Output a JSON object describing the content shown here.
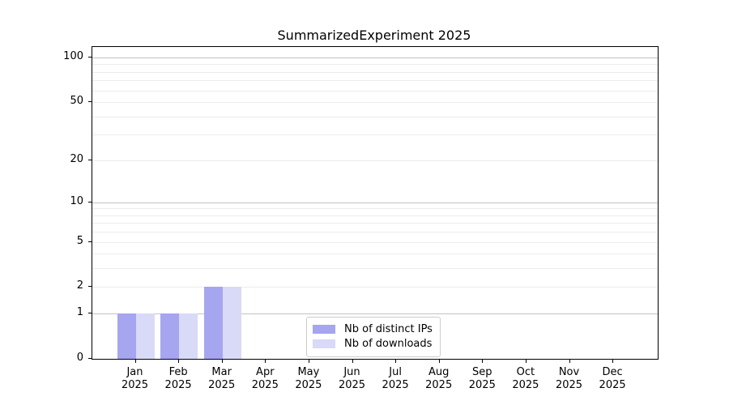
{
  "colors": {
    "background": "#ffffff",
    "axis": "#000000",
    "major_grid": "#c3c3c3",
    "minor_grid": "#ececec",
    "legend_border": "#cccccc",
    "bar_distinct_ips": "#a5a5f0",
    "bar_downloads": "#d9d9f8"
  },
  "chart_data": {
    "type": "bar",
    "title": "SummarizedExperiment 2025",
    "xlabel": "",
    "ylabel": "",
    "scale": "log1p",
    "grid": "horizontal",
    "legend_position": "inside-bottom-center",
    "ylim": [
      0,
      117.6
    ],
    "categories": [
      {
        "month": "Jan",
        "year": "2025"
      },
      {
        "month": "Feb",
        "year": "2025"
      },
      {
        "month": "Mar",
        "year": "2025"
      },
      {
        "month": "Apr",
        "year": "2025"
      },
      {
        "month": "May",
        "year": "2025"
      },
      {
        "month": "Jun",
        "year": "2025"
      },
      {
        "month": "Jul",
        "year": "2025"
      },
      {
        "month": "Aug",
        "year": "2025"
      },
      {
        "month": "Sep",
        "year": "2025"
      },
      {
        "month": "Oct",
        "year": "2025"
      },
      {
        "month": "Nov",
        "year": "2025"
      },
      {
        "month": "Dec",
        "year": "2025"
      }
    ],
    "series": [
      {
        "name": "Nb of distinct IPs",
        "color": "#a5a5f0",
        "values": [
          1,
          1,
          2,
          0,
          0,
          0,
          0,
          0,
          0,
          0,
          0,
          0
        ]
      },
      {
        "name": "Nb of downloads",
        "color": "#d9d9f8",
        "values": [
          1,
          1,
          2,
          0,
          0,
          0,
          0,
          0,
          0,
          0,
          0,
          0
        ]
      }
    ],
    "yticks": [
      {
        "value": 0,
        "label": "0"
      },
      {
        "value": 1,
        "label": "1"
      },
      {
        "value": 2,
        "label": "2"
      },
      {
        "value": 5,
        "label": "5"
      },
      {
        "value": 10,
        "label": "10"
      },
      {
        "value": 20,
        "label": "20"
      },
      {
        "value": 50,
        "label": "50"
      },
      {
        "value": 100,
        "label": "100"
      }
    ],
    "major_gridlines": [
      1,
      10,
      100
    ],
    "minor_gridlines": [
      2,
      3,
      4,
      5,
      6,
      7,
      8,
      9,
      20,
      30,
      40,
      50,
      60,
      70,
      80,
      90
    ]
  }
}
